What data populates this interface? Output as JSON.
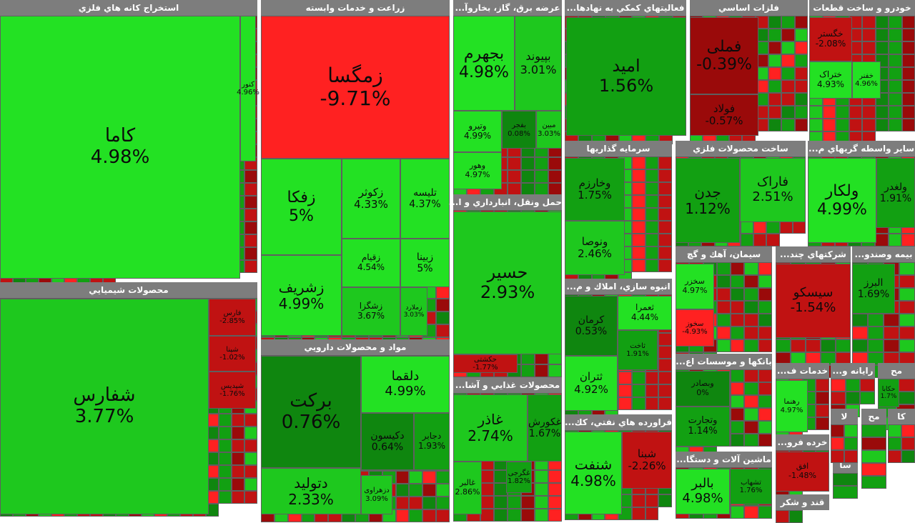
{
  "colors": {
    "strong_up": "#23e123",
    "up": "#1ec81e",
    "mid_up": "#12a012",
    "small_up": "#0f860f",
    "strong_down": "#ff2121",
    "down": "#c01212",
    "small_down": "#9a0a0a",
    "neutral": "#555555",
    "header_bg": "#7d7d7d",
    "header_text": "#ffffff"
  },
  "sectors": [
    {
      "name": "استخراج كانه هاي فلزي",
      "stocks": [
        {
          "name": "کاما",
          "change": "4.98%"
        },
        {
          "name": "کنور",
          "change": "4.96%"
        }
      ]
    },
    {
      "name": "محصولات شيميايي",
      "stocks": [
        {
          "name": "شفارس",
          "change": "3.77%"
        },
        {
          "name": "فارس",
          "change": "-2.85%"
        },
        {
          "name": "شپنا",
          "change": "-1.02%"
        },
        {
          "name": "شپدیس",
          "change": "-1.76%"
        }
      ]
    },
    {
      "name": "زراعت و خدمات وابسته",
      "stocks": [
        {
          "name": "زمگسا",
          "change": "-9.71%"
        },
        {
          "name": "زفکا",
          "change": "5%"
        },
        {
          "name": "زکوثر",
          "change": "4.33%"
        },
        {
          "name": "تلیسه",
          "change": "4.37%"
        },
        {
          "name": "زقیام",
          "change": "4.54%"
        },
        {
          "name": "زبینا",
          "change": "5%"
        },
        {
          "name": "زشریف",
          "change": "4.99%"
        },
        {
          "name": "زشگزا",
          "change": "3.67%"
        },
        {
          "name": "زملارد",
          "change": "3.03%"
        }
      ]
    },
    {
      "name": "مواد و محصولات دارويي",
      "stocks": [
        {
          "name": "برکت",
          "change": "0.76%"
        },
        {
          "name": "دلقما",
          "change": "4.99%"
        },
        {
          "name": "دکیسون",
          "change": "0.64%"
        },
        {
          "name": "دجابر",
          "change": "1.93%"
        },
        {
          "name": "دتولید",
          "change": "2.33%"
        },
        {
          "name": "دزهراوی",
          "change": "3.09%"
        }
      ]
    },
    {
      "name": "عرضه برق، گاز، بخاروآ...",
      "stocks": [
        {
          "name": "بجهرم",
          "change": "4.98%"
        },
        {
          "name": "بپیوند",
          "change": "3.01%"
        },
        {
          "name": "وتیرو",
          "change": "4.99%"
        },
        {
          "name": "بفجر",
          "change": "0.08%"
        },
        {
          "name": "مبین",
          "change": "3.03%"
        },
        {
          "name": "وهور",
          "change": "4.97%"
        }
      ]
    },
    {
      "name": "حمل ونقل، انبارداري و ا...",
      "stocks": [
        {
          "name": "حسیر",
          "change": "2.93%"
        },
        {
          "name": "حکشتی",
          "change": "-1.77%"
        }
      ]
    },
    {
      "name": "محصولات غذايي و آشا...",
      "stocks": [
        {
          "name": "غاذر",
          "change": "2.74%"
        },
        {
          "name": "غکورش",
          "change": "1.67%"
        },
        {
          "name": "غالبر",
          "change": "2.86%"
        },
        {
          "name": "غگرجی",
          "change": "1.82%"
        }
      ]
    },
    {
      "name": "فعاليتهاي كمكي به نهادها...",
      "stocks": [
        {
          "name": "امید",
          "change": "1.56%"
        }
      ]
    },
    {
      "name": "سرمايه گذاريها",
      "stocks": [
        {
          "name": "وخارزم",
          "change": "1.75%"
        },
        {
          "name": "ونوصا",
          "change": "2.46%"
        }
      ]
    },
    {
      "name": "انبوه سازي، املاك و م...",
      "stocks": [
        {
          "name": "کرمان",
          "change": "0.53%"
        },
        {
          "name": "ثعمرا",
          "change": "4.44%"
        },
        {
          "name": "ثاخت",
          "change": "1.91%"
        },
        {
          "name": "ثتران",
          "change": "4.92%"
        }
      ]
    },
    {
      "name": "فراورده هاي نفتي، كك...",
      "stocks": [
        {
          "name": "شنفت",
          "change": "4.98%"
        },
        {
          "name": "شبنا",
          "change": "-2.26%"
        }
      ]
    },
    {
      "name": "فلزات اساسي",
      "stocks": [
        {
          "name": "فملی",
          "change": "-0.39%"
        },
        {
          "name": "فولاد",
          "change": "-0.57%"
        }
      ]
    },
    {
      "name": "خودرو و ساخت قطعات",
      "stocks": [
        {
          "name": "خگستر",
          "change": "-2.08%"
        },
        {
          "name": "ختراک",
          "change": "4.93%"
        },
        {
          "name": "خفنر",
          "change": "4.96%"
        }
      ]
    },
    {
      "name": "ساخت محصولات فلزي",
      "stocks": [
        {
          "name": "جدن",
          "change": "1.12%"
        },
        {
          "name": "فاراک",
          "change": "2.51%"
        }
      ]
    },
    {
      "name": "ساير واسطه گريهاي م...",
      "stocks": [
        {
          "name": "ولکار",
          "change": "4.99%"
        },
        {
          "name": "ولغدر",
          "change": "1.91%"
        }
      ]
    },
    {
      "name": "سيمان، آهك و گچ",
      "stocks": [
        {
          "name": "سخزر",
          "change": "4.97%"
        },
        {
          "name": "سخوز",
          "change": "-4.93%"
        }
      ]
    },
    {
      "name": "شركتهاي چند...",
      "stocks": [
        {
          "name": "سیسکو",
          "change": "-1.54%"
        }
      ]
    },
    {
      "name": "بيمه وصندو...",
      "stocks": [
        {
          "name": "البرز",
          "change": "1.69%"
        }
      ]
    },
    {
      "name": "بانكها و موسسات اع...",
      "stocks": [
        {
          "name": "وبصادر",
          "change": "0%"
        },
        {
          "name": "وتجارت",
          "change": "1.14%"
        }
      ]
    },
    {
      "name": "ماشين آلات و دستگا...",
      "stocks": [
        {
          "name": "بالبر",
          "change": "4.98%"
        },
        {
          "name": "تشهاب",
          "change": "1.76%"
        }
      ]
    },
    {
      "name": "خدمات ف...",
      "stocks": [
        {
          "name": "رهنما",
          "change": "4.97%"
        }
      ]
    },
    {
      "name": "رايانه و...",
      "stocks": []
    },
    {
      "name": "مح",
      "stocks": [
        {
          "name": "حکابا",
          "change": "1.7%"
        }
      ]
    },
    {
      "name": "خرده فرو...",
      "stocks": [
        {
          "name": "افق",
          "change": "-1.48%"
        }
      ]
    },
    {
      "name": "قند و شکر",
      "stocks": []
    },
    {
      "name": "سا",
      "stocks": []
    },
    {
      "name": "مح",
      "stocks": []
    },
    {
      "name": "لا",
      "stocks": []
    },
    {
      "name": "کا",
      "stocks": []
    }
  ]
}
